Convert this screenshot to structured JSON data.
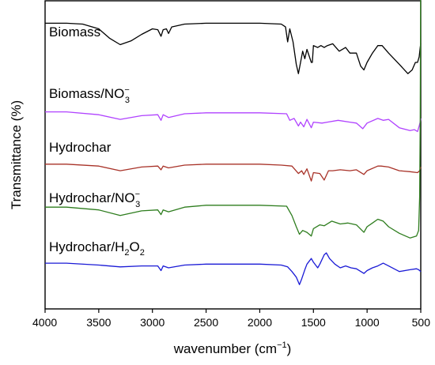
{
  "chart_data": {
    "type": "line",
    "title": "",
    "xlabel": "wavenumber (cm",
    "xlabel_sup": "−1",
    "xlabel_tail": ")",
    "ylabel": "Transmittance (%)",
    "xlim": [
      4000,
      500
    ],
    "x_reversed": true,
    "xticks": [
      4000,
      3500,
      3000,
      2500,
      2000,
      1500,
      1000,
      500
    ],
    "yticks_shown": false,
    "grid": false,
    "legend": "none (inline labels above each trace)",
    "series": [
      {
        "name": "Biomass",
        "name_parts": [
          {
            "t": "Biomass"
          }
        ],
        "color": "#000000",
        "points": [
          [
            4000,
            -0.7
          ],
          [
            3800,
            -0.7
          ],
          [
            3650,
            -0.75
          ],
          [
            3500,
            -1.0
          ],
          [
            3400,
            -1.5
          ],
          [
            3300,
            -1.85
          ],
          [
            3200,
            -1.65
          ],
          [
            3100,
            -1.3
          ],
          [
            3000,
            -1.0
          ],
          [
            2950,
            -1.05
          ],
          [
            2920,
            -1.4
          ],
          [
            2900,
            -1.05
          ],
          [
            2870,
            -1.0
          ],
          [
            2850,
            -1.25
          ],
          [
            2820,
            -0.9
          ],
          [
            2700,
            -0.75
          ],
          [
            2500,
            -0.7
          ],
          [
            2000,
            -0.7
          ],
          [
            1800,
            -0.75
          ],
          [
            1760,
            -0.9
          ],
          [
            1740,
            -1.7
          ],
          [
            1720,
            -1.0
          ],
          [
            1690,
            -1.7
          ],
          [
            1660,
            -2.9
          ],
          [
            1640,
            -3.4
          ],
          [
            1620,
            -2.8
          ],
          [
            1600,
            -2.2
          ],
          [
            1580,
            -2.6
          ],
          [
            1560,
            -2.1
          ],
          [
            1520,
            -2.8
          ],
          [
            1510,
            -2.8
          ],
          [
            1500,
            -1.9
          ],
          [
            1460,
            -2.0
          ],
          [
            1430,
            -1.9
          ],
          [
            1400,
            -2.0
          ],
          [
            1370,
            -1.9
          ],
          [
            1320,
            -1.8
          ],
          [
            1260,
            -2.2
          ],
          [
            1200,
            -2.0
          ],
          [
            1160,
            -2.3
          ],
          [
            1100,
            -2.3
          ],
          [
            1060,
            -3.0
          ],
          [
            1030,
            -3.2
          ],
          [
            1000,
            -2.8
          ],
          [
            950,
            -2.3
          ],
          [
            900,
            -1.9
          ],
          [
            860,
            -1.9
          ],
          [
            800,
            -2.3
          ],
          [
            700,
            -2.9
          ],
          [
            620,
            -3.4
          ],
          [
            580,
            -3.2
          ],
          [
            550,
            -2.8
          ],
          [
            530,
            -2.8
          ],
          [
            515,
            -2.5
          ],
          [
            505,
            -2.0
          ],
          [
            500,
            -1.8
          ]
        ]
      },
      {
        "name": "Biomass/NO3−",
        "name_parts": [
          {
            "t": "Biomass/NO"
          },
          {
            "t": "−",
            "pos": "sup"
          },
          {
            "t": "3",
            "pos": "sub"
          }
        ],
        "color": "#b042ff",
        "points": [
          [
            4000,
            -5.45
          ],
          [
            3800,
            -5.45
          ],
          [
            3500,
            -5.6
          ],
          [
            3300,
            -5.85
          ],
          [
            3100,
            -5.65
          ],
          [
            2950,
            -5.6
          ],
          [
            2920,
            -5.9
          ],
          [
            2900,
            -5.6
          ],
          [
            2850,
            -5.75
          ],
          [
            2700,
            -5.55
          ],
          [
            2500,
            -5.5
          ],
          [
            2000,
            -5.5
          ],
          [
            1750,
            -5.55
          ],
          [
            1720,
            -5.9
          ],
          [
            1680,
            -5.8
          ],
          [
            1640,
            -6.2
          ],
          [
            1620,
            -6.0
          ],
          [
            1590,
            -6.25
          ],
          [
            1560,
            -5.85
          ],
          [
            1520,
            -6.3
          ],
          [
            1500,
            -6.0
          ],
          [
            1420,
            -6.05
          ],
          [
            1370,
            -6.0
          ],
          [
            1270,
            -5.9
          ],
          [
            1160,
            -6.0
          ],
          [
            1100,
            -6.05
          ],
          [
            1040,
            -6.35
          ],
          [
            1000,
            -6.05
          ],
          [
            900,
            -5.8
          ],
          [
            850,
            -5.9
          ],
          [
            800,
            -5.85
          ],
          [
            700,
            -6.3
          ],
          [
            600,
            -6.45
          ],
          [
            560,
            -6.4
          ],
          [
            530,
            -6.5
          ],
          [
            515,
            -6.2
          ],
          [
            505,
            -6.0
          ],
          [
            500,
            -5.8
          ]
        ]
      },
      {
        "name": "Hydrochar",
        "name_parts": [
          {
            "t": "Hydrochar"
          }
        ],
        "color": "#a83228",
        "points": [
          [
            4000,
            -8.25
          ],
          [
            3800,
            -8.25
          ],
          [
            3500,
            -8.35
          ],
          [
            3300,
            -8.6
          ],
          [
            3100,
            -8.4
          ],
          [
            2950,
            -8.35
          ],
          [
            2920,
            -8.55
          ],
          [
            2900,
            -8.35
          ],
          [
            2850,
            -8.45
          ],
          [
            2700,
            -8.3
          ],
          [
            2500,
            -8.25
          ],
          [
            2000,
            -8.25
          ],
          [
            1800,
            -8.3
          ],
          [
            1700,
            -8.35
          ],
          [
            1640,
            -8.75
          ],
          [
            1610,
            -8.6
          ],
          [
            1590,
            -8.8
          ],
          [
            1560,
            -8.5
          ],
          [
            1520,
            -9.15
          ],
          [
            1500,
            -8.7
          ],
          [
            1440,
            -8.75
          ],
          [
            1400,
            -9.1
          ],
          [
            1360,
            -8.6
          ],
          [
            1320,
            -8.6
          ],
          [
            1250,
            -8.55
          ],
          [
            1160,
            -8.6
          ],
          [
            1100,
            -8.55
          ],
          [
            1030,
            -8.8
          ],
          [
            1000,
            -8.6
          ],
          [
            900,
            -8.35
          ],
          [
            870,
            -8.35
          ],
          [
            800,
            -8.4
          ],
          [
            700,
            -8.6
          ],
          [
            600,
            -8.65
          ],
          [
            530,
            -8.7
          ],
          [
            510,
            -8.6
          ],
          [
            500,
            -8.4
          ]
        ]
      },
      {
        "name": "Hydrochar/NO3−",
        "name_parts": [
          {
            "t": "Hydrochar/NO"
          },
          {
            "t": "−",
            "pos": "sup"
          },
          {
            "t": "3",
            "pos": "sub"
          }
        ],
        "color": "#2e7d1e",
        "points": [
          [
            4000,
            -10.55
          ],
          [
            3800,
            -10.55
          ],
          [
            3500,
            -10.7
          ],
          [
            3300,
            -11.0
          ],
          [
            3100,
            -10.75
          ],
          [
            2950,
            -10.7
          ],
          [
            2920,
            -10.95
          ],
          [
            2900,
            -10.7
          ],
          [
            2850,
            -10.8
          ],
          [
            2700,
            -10.55
          ],
          [
            2500,
            -10.45
          ],
          [
            2000,
            -10.45
          ],
          [
            1750,
            -10.5
          ],
          [
            1700,
            -11.0
          ],
          [
            1660,
            -11.6
          ],
          [
            1630,
            -12.0
          ],
          [
            1600,
            -11.8
          ],
          [
            1560,
            -11.9
          ],
          [
            1520,
            -12.1
          ],
          [
            1500,
            -11.7
          ],
          [
            1440,
            -11.5
          ],
          [
            1400,
            -11.55
          ],
          [
            1330,
            -11.3
          ],
          [
            1250,
            -11.45
          ],
          [
            1180,
            -11.4
          ],
          [
            1100,
            -11.5
          ],
          [
            1030,
            -11.9
          ],
          [
            1000,
            -11.6
          ],
          [
            950,
            -11.4
          ],
          [
            900,
            -11.2
          ],
          [
            850,
            -11.3
          ],
          [
            800,
            -11.6
          ],
          [
            700,
            -11.95
          ],
          [
            600,
            -12.2
          ],
          [
            540,
            -12.1
          ],
          [
            520,
            -11.8
          ],
          [
            510,
            -10.0
          ],
          [
            505,
            -6.0
          ],
          [
            502,
            -1.0
          ],
          [
            500,
            4.0
          ]
        ]
      },
      {
        "name": "Hydrochar/H2O2",
        "name_parts": [
          {
            "t": "Hydrochar/H"
          },
          {
            "t": "2",
            "pos": "sub"
          },
          {
            "t": "O"
          },
          {
            "t": "2",
            "pos": "sub"
          }
        ],
        "color": "#1a1ad6",
        "points": [
          [
            4000,
            -13.55
          ],
          [
            3800,
            -13.55
          ],
          [
            3500,
            -13.65
          ],
          [
            3300,
            -13.75
          ],
          [
            3100,
            -13.7
          ],
          [
            2950,
            -13.7
          ],
          [
            2920,
            -13.95
          ],
          [
            2900,
            -13.7
          ],
          [
            2850,
            -13.8
          ],
          [
            2700,
            -13.65
          ],
          [
            2500,
            -13.6
          ],
          [
            2000,
            -13.6
          ],
          [
            1800,
            -13.65
          ],
          [
            1740,
            -13.75
          ],
          [
            1700,
            -14.0
          ],
          [
            1660,
            -14.3
          ],
          [
            1630,
            -14.7
          ],
          [
            1610,
            -14.4
          ],
          [
            1580,
            -13.9
          ],
          [
            1560,
            -13.6
          ],
          [
            1520,
            -13.3
          ],
          [
            1500,
            -13.5
          ],
          [
            1460,
            -13.8
          ],
          [
            1440,
            -13.6
          ],
          [
            1400,
            -13.1
          ],
          [
            1380,
            -13.0
          ],
          [
            1350,
            -13.3
          ],
          [
            1300,
            -13.6
          ],
          [
            1250,
            -13.8
          ],
          [
            1200,
            -13.7
          ],
          [
            1150,
            -13.8
          ],
          [
            1100,
            -13.85
          ],
          [
            1030,
            -14.1
          ],
          [
            1000,
            -13.95
          ],
          [
            950,
            -13.8
          ],
          [
            900,
            -13.7
          ],
          [
            850,
            -13.55
          ],
          [
            800,
            -13.7
          ],
          [
            700,
            -14.0
          ],
          [
            600,
            -13.9
          ],
          [
            540,
            -13.85
          ],
          [
            520,
            -13.9
          ],
          [
            500,
            -14.0
          ]
        ]
      }
    ]
  }
}
